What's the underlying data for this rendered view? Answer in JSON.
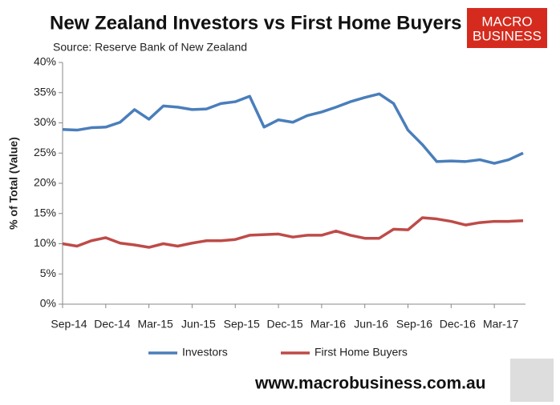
{
  "chart_data": {
    "type": "line",
    "title": "New Zealand Investors vs First Home Buyers",
    "subtitle": "Source: Reserve Bank of New Zealand",
    "y_label": "% of Total (Value)",
    "categories": [
      "Sep-14",
      null,
      null,
      "Dec-14",
      null,
      null,
      "Mar-15",
      null,
      null,
      "Jun-15",
      null,
      null,
      "Sep-15",
      null,
      null,
      "Dec-15",
      null,
      null,
      "Mar-16",
      null,
      null,
      "Jun-16",
      null,
      null,
      "Sep-16",
      null,
      null,
      "Dec-16",
      null,
      null,
      "Mar-17",
      null,
      null
    ],
    "series": [
      {
        "name": "Investors",
        "color": "#4a7ebb",
        "values": [
          28.9,
          28.8,
          29.2,
          29.3,
          30.1,
          32.2,
          30.6,
          32.8,
          32.6,
          32.2,
          32.3,
          33.2,
          33.5,
          34.4,
          29.3,
          30.5,
          30.1,
          31.2,
          31.8,
          32.6,
          33.5,
          34.2,
          34.8,
          33.2,
          28.8,
          26.4,
          23.6,
          23.7,
          23.6,
          23.9,
          23.3,
          23.9,
          25.0
        ]
      },
      {
        "name": "First Home Buyers",
        "color": "#be4b48",
        "values": [
          10.0,
          9.6,
          10.5,
          11.0,
          10.1,
          9.8,
          9.4,
          10.0,
          9.6,
          10.1,
          10.5,
          10.5,
          10.7,
          11.4,
          11.5,
          11.6,
          11.1,
          11.4,
          11.4,
          12.1,
          11.4,
          10.9,
          10.9,
          12.4,
          12.3,
          14.3,
          14.1,
          13.7,
          13.1,
          13.5,
          13.7,
          13.7,
          13.8
        ]
      }
    ],
    "ylim": [
      0,
      40
    ],
    "yticks": [
      {
        "value": 0,
        "label": "0%"
      },
      {
        "value": 5,
        "label": "5%"
      },
      {
        "value": 10,
        "label": "10%"
      },
      {
        "value": 15,
        "label": "15%"
      },
      {
        "value": 20,
        "label": "20%"
      },
      {
        "value": 25,
        "label": "25%"
      },
      {
        "value": 30,
        "label": "30%"
      },
      {
        "value": 35,
        "label": "35%"
      },
      {
        "value": 40,
        "label": "40%"
      }
    ],
    "grid": false,
    "legend": "bottom"
  },
  "branding": {
    "logo": [
      "MACRO",
      "BUSINESS"
    ],
    "url": "www.macrobusiness.com.au"
  }
}
